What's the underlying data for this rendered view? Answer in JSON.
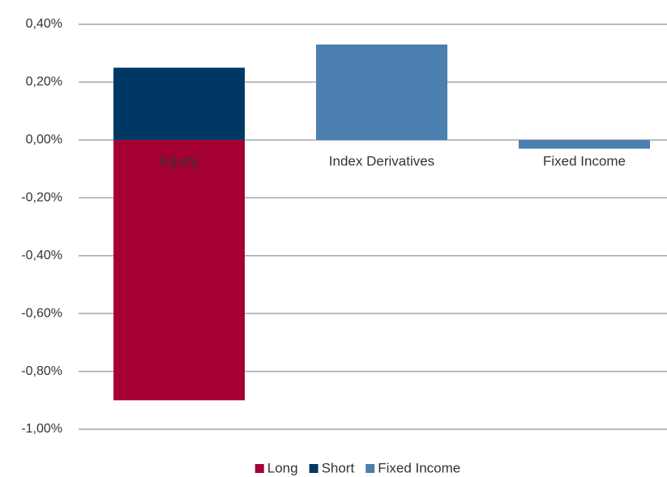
{
  "chart_data": {
    "type": "stacked_bar",
    "categories": [
      "Equity",
      "Index Derivatives",
      "Fixed Income"
    ],
    "series": [
      {
        "name": "Long",
        "color": "#a50032",
        "values": [
          -0.9,
          null,
          null
        ]
      },
      {
        "name": "Short",
        "color": "#003865",
        "values": [
          0.25,
          null,
          null
        ]
      },
      {
        "name": "Fixed Income",
        "color": "#4a7fb0",
        "values": [
          null,
          0.33,
          -0.03
        ]
      }
    ],
    "ylim": [
      -1.0,
      0.4
    ],
    "yticks": [
      {
        "value": -1.0,
        "label": "-1,00%"
      },
      {
        "value": -0.8,
        "label": "-0,80%"
      },
      {
        "value": -0.6,
        "label": "-0,60%"
      },
      {
        "value": -0.4,
        "label": "-0,40%"
      },
      {
        "value": -0.2,
        "label": "-0,20%"
      },
      {
        "value": 0,
        "label": "0,00%"
      },
      {
        "value": 0.2,
        "label": "0,20%"
      },
      {
        "value": 0.4,
        "label": "0,40%"
      }
    ],
    "grid": true,
    "legend": "bottom"
  }
}
